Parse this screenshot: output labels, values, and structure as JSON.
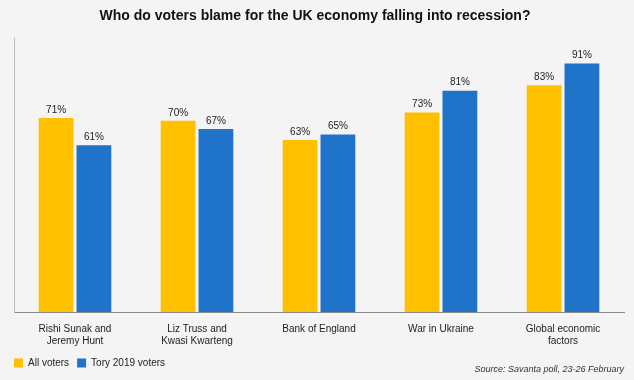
{
  "chart_data": {
    "type": "bar",
    "title": "Who do voters blame for the UK economy falling into recession?",
    "categories": [
      "Rishi Sunak and Jeremy Hunt",
      "Liz Truss and Kwasi Kwarteng",
      "Bank of England",
      "War in Ukraine",
      "Global economic factors"
    ],
    "series": [
      {
        "name": "All voters",
        "color": "#ffc000",
        "values": [
          71,
          70,
          63,
          73,
          83
        ],
        "value_labels": [
          "71%",
          "70%",
          "63%",
          "73%",
          "83%"
        ]
      },
      {
        "name": "Tory 2019 voters",
        "color": "#1f74c9",
        "values": [
          61,
          67,
          65,
          81,
          91
        ],
        "value_labels": [
          "61%",
          "67%",
          "65%",
          "81%",
          "91%"
        ]
      }
    ],
    "annotations": [
      "Source: Savanta poll, 23-26 February"
    ],
    "ylim": [
      0,
      100
    ],
    "grid": false,
    "legend": "bottom-left",
    "data_labels": true,
    "tick_labels": "x"
  }
}
